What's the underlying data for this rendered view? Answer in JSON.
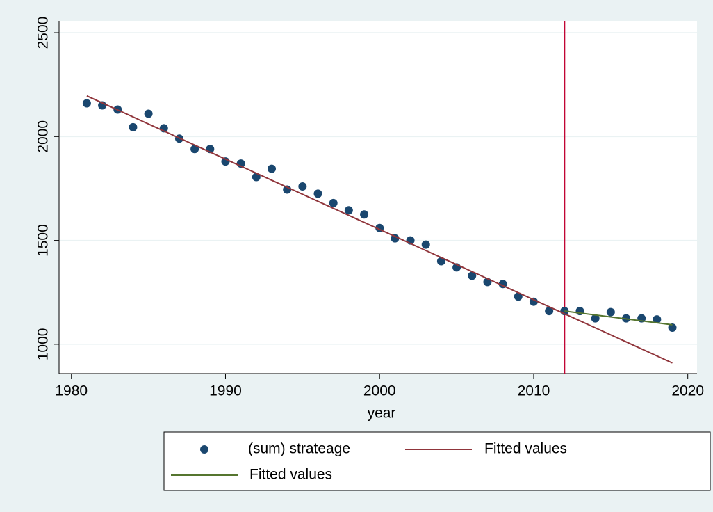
{
  "chart_data": {
    "type": "scatter",
    "x_label": "year",
    "xlim": [
      1979.2,
      2020.6
    ],
    "xticks": [
      1980,
      1990,
      2000,
      2010,
      2020
    ],
    "ylim": [
      859,
      2557
    ],
    "yticks": [
      1000,
      1500,
      2000,
      2500
    ],
    "grid": true,
    "xline": {
      "value": 2012,
      "color": "#c10534"
    },
    "series": [
      {
        "name": "(sum) strateage",
        "type": "scatter",
        "color": "#1a476f",
        "x": [
          1981,
          1982,
          1983,
          1984,
          1985,
          1986,
          1987,
          1988,
          1989,
          1990,
          1991,
          1992,
          1993,
          1994,
          1995,
          1996,
          1997,
          1998,
          1999,
          2000,
          2001,
          2002,
          2003,
          2004,
          2005,
          2006,
          2007,
          2008,
          2009,
          2010,
          2011,
          2012,
          2013,
          2014,
          2015,
          2016,
          2017,
          2018,
          2019
        ],
        "values": [
          2160,
          2150,
          2130,
          2045,
          2110,
          2040,
          1990,
          1940,
          1940,
          1880,
          1870,
          1805,
          1845,
          1745,
          1760,
          1725,
          1680,
          1645,
          1625,
          1560,
          1510,
          1500,
          1480,
          1400,
          1370,
          1330,
          1300,
          1290,
          1230,
          1205,
          1160,
          1160,
          1160,
          1125,
          1155,
          1125,
          1125,
          1120,
          1080
        ]
      },
      {
        "name": "Fitted values",
        "type": "line",
        "color": "#90353b",
        "x": [
          1981,
          2019
        ],
        "values": [
          2196,
          910
        ]
      },
      {
        "name": "Fitted values",
        "type": "line",
        "color": "#55752f",
        "x": [
          2012,
          2019
        ],
        "values": [
          1160,
          1094
        ]
      }
    ]
  }
}
